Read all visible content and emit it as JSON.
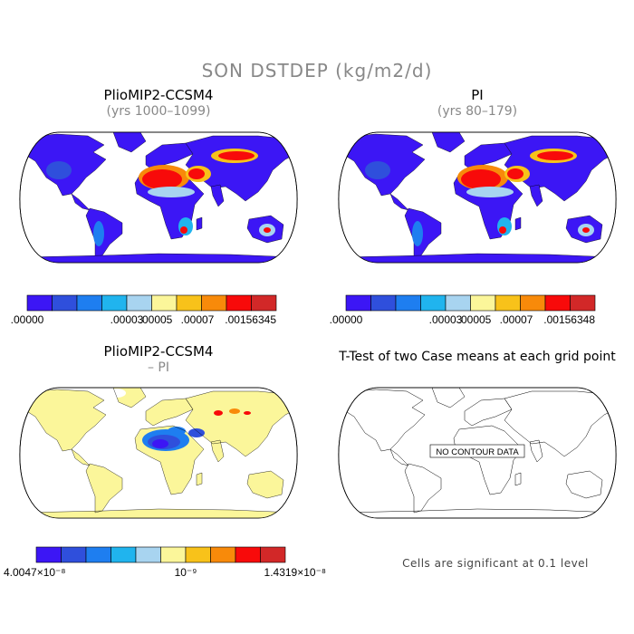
{
  "main_title": "SON DSTDEP (kg/m2/d)",
  "colors": {
    "ocean": "#ffffff",
    "outline": "#000000",
    "palette": [
      "#3c16f5",
      "#2f4fdc",
      "#1e7ef0",
      "#20b4ee",
      "#a8d4f0",
      "#fbf69a",
      "#f8c21a",
      "#f88a0a",
      "#f80a0a",
      "#d22828"
    ],
    "diff_palette": [
      "#3c16f5",
      "#2f4fdc",
      "#1e7ef0",
      "#20b4ee",
      "#a8d4f0",
      "#fbf69a",
      "#f8c21a",
      "#f88a0a",
      "#f80a0a",
      "#d22828"
    ]
  },
  "panels": [
    {
      "id": "pliomip2",
      "title": "PlioMIP2-CCSM4",
      "subtitle": "(yrs 1000–1099)",
      "colorbar_labels": [
        ".00000",
        ".00003",
        ".00005",
        ".00007",
        ".00156345"
      ]
    },
    {
      "id": "pi",
      "title": "PI",
      "subtitle": "(yrs 80–179)",
      "colorbar_labels": [
        ".00000",
        ".00003",
        ".00005",
        ".00007",
        ".00156348"
      ]
    },
    {
      "id": "diff",
      "title": "PlioMIP2-CCSM4",
      "subtitle": "– PI",
      "colorbar_labels": [
        "4.0047×10⁻⁸",
        "10⁻⁹",
        "1.4319×10⁻⁸"
      ]
    },
    {
      "id": "ttest",
      "title": "T-Test of two Case means at each grid point",
      "no_data_label": "NO CONTOUR DATA",
      "footnote": "Cells are significant at 0.1 level"
    }
  ],
  "chart_data": [
    {
      "type": "heatmap",
      "title": "PlioMIP2-CCSM4",
      "subtitle": "(yrs 1000–1099)",
      "variable": "SON DSTDEP (kg/m2/d)",
      "projection": "Robinson",
      "colorbar_levels": [
        ".00000",
        ".00003",
        ".00005",
        ".00007",
        ".00156345"
      ],
      "n_color_bins": 10,
      "regions_high": [
        "Sahara",
        "Arabian Peninsula",
        "Middle East",
        "Taklimakan/Gobi",
        "Southern Africa",
        "Central Australia"
      ]
    },
    {
      "type": "heatmap",
      "title": "PI",
      "subtitle": "(yrs 80–179)",
      "variable": "SON DSTDEP (kg/m2/d)",
      "projection": "Robinson",
      "colorbar_levels": [
        ".00000",
        ".00003",
        ".00005",
        ".00007",
        ".00156348"
      ],
      "n_color_bins": 10,
      "regions_high": [
        "Sahara",
        "Arabian Peninsula",
        "Middle East",
        "Taklimakan/Gobi",
        "Southern Africa",
        "Central Australia"
      ]
    },
    {
      "type": "heatmap",
      "title": "PlioMIP2-CCSM4 – PI",
      "projection": "Robinson",
      "colorbar_min": "4.0047×10⁻⁸",
      "colorbar_mid": "10⁻⁹",
      "colorbar_max": "1.4319×10⁻⁸",
      "n_color_bins": 10,
      "regions_negative": [
        "Sahara",
        "Sahel",
        "Arabian Peninsula"
      ],
      "regions_positive": [
        "Central Asia"
      ]
    },
    {
      "type": "heatmap",
      "title": "T-Test of two Case means at each grid point",
      "projection": "Robinson",
      "annotation": "NO CONTOUR DATA",
      "note": "Cells are significant at 0.1 level"
    }
  ]
}
